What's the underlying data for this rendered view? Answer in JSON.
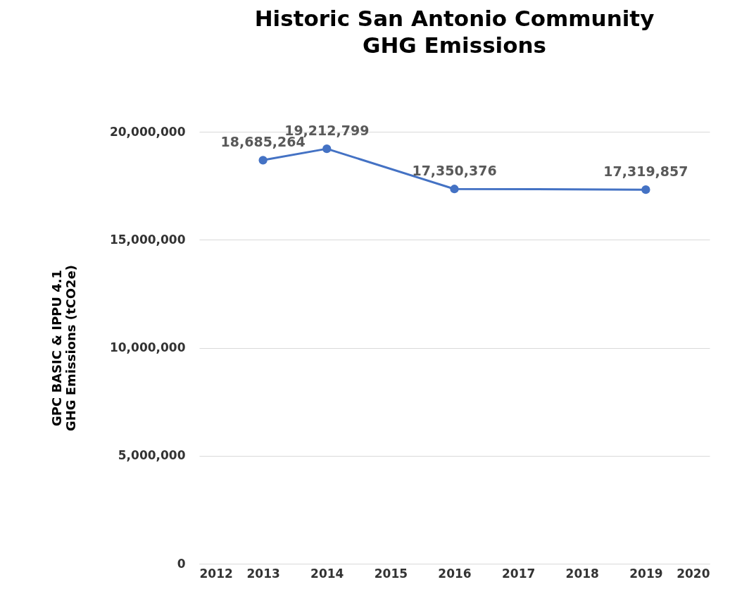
{
  "chart_data": {
    "type": "line",
    "title": "Historic San Antonio Community\nGHG Emissions",
    "ylabel": "GPC BASIC & IPPU 4.1\nGHG Emissions (tCO2e)",
    "x": [
      2013,
      2014,
      2016,
      2019
    ],
    "series": [
      {
        "color": "#4472c4",
        "values": [
          18685264,
          19212799,
          17350376,
          17319857
        ],
        "value_labels": [
          "18,685,264",
          "19,212,799",
          "17,350,376",
          "17,319,857"
        ]
      }
    ],
    "xlim": [
      2012,
      2020
    ],
    "xticks": [
      2012,
      2013,
      2014,
      2015,
      2016,
      2017,
      2018,
      2019,
      2020
    ],
    "ylim": [
      0,
      20000000
    ],
    "yticks": [
      0,
      {
        "value": 5000000,
        "label": "5,000,000"
      },
      {
        "value": 10000000,
        "label": "10,000,000"
      },
      {
        "value": 15000000,
        "label": "15,000,000"
      },
      {
        "value": 20000000,
        "label": "20,000,000"
      }
    ],
    "grid": "y",
    "marker": "circle"
  }
}
